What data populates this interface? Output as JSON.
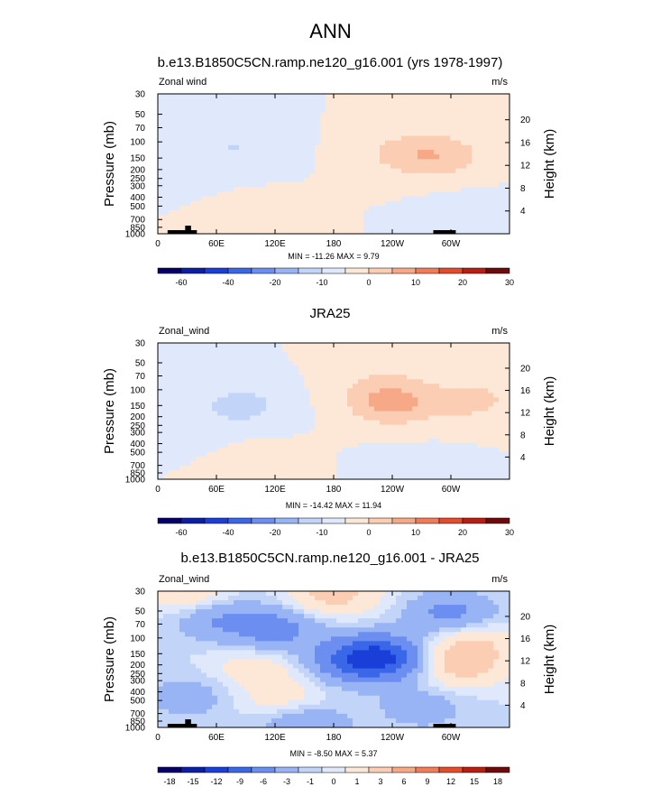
{
  "page_title": "ANN",
  "chart_data": [
    {
      "type": "heatmap",
      "title": "b.e13.B1850C5CN.ramp.ne120_g16.001 (yrs 1978-1997)",
      "left_label": "Zonal wind",
      "units": "m/s",
      "ylabel": "Pressure (mb)",
      "y2label": "Height (km)",
      "x_ticks": [
        "0",
        "60E",
        "120E",
        "180",
        "120W",
        "60W"
      ],
      "y_ticks": [
        "30",
        "50",
        "70",
        "100",
        "150",
        "200",
        "250",
        "300",
        "400",
        "500",
        "700",
        "850",
        "1000"
      ],
      "y2_ticks": [
        "20",
        "16",
        "12",
        "8",
        "4"
      ],
      "min_max": "MIN = -11.26  MAX =  9.79",
      "colorbar_labels": [
        "-60",
        "-40",
        "-20",
        "-10",
        "0",
        "10",
        "20",
        "30"
      ],
      "contour_levels": [
        -60,
        -50,
        -40,
        -30,
        -20,
        -15,
        -10,
        -5,
        0,
        5,
        10,
        15,
        20,
        25,
        30
      ],
      "min": -11.26,
      "max": 9.79,
      "xlim": [
        0,
        360
      ],
      "ylim_mb": [
        1000,
        30
      ],
      "features": [
        {
          "lon": 80,
          "p": 115,
          "value": -5
        },
        {
          "lon": 20,
          "p": 210,
          "value": -2
        },
        {
          "lon": 290,
          "p": 140,
          "value": 8
        },
        {
          "lon": 245,
          "p": 135,
          "value": 5
        },
        {
          "lon": 100,
          "p": 750,
          "value": 4
        },
        {
          "lon": 320,
          "p": 650,
          "value": -3
        }
      ]
    },
    {
      "type": "heatmap",
      "title": "JRA25",
      "left_label": "Zonal_wind",
      "units": "m/s",
      "ylabel": "Pressure (mb)",
      "y2label": "Height (km)",
      "x_ticks": [
        "0",
        "60E",
        "120E",
        "180",
        "120W",
        "60W"
      ],
      "y_ticks": [
        "30",
        "50",
        "70",
        "100",
        "150",
        "200",
        "250",
        "300",
        "400",
        "500",
        "700",
        "850",
        "1000"
      ],
      "y2_ticks": [
        "20",
        "16",
        "12",
        "8",
        "4"
      ],
      "min_max": "MIN = -14.42  MAX = 11.94",
      "colorbar_labels": [
        "-60",
        "-40",
        "-20",
        "-10",
        "0",
        "10",
        "20",
        "30"
      ],
      "contour_levels": [
        -60,
        -50,
        -40,
        -30,
        -20,
        -15,
        -10,
        -5,
        0,
        5,
        10,
        15,
        20,
        25,
        30
      ],
      "min": -14.42,
      "max": 11.94,
      "xlim": [
        0,
        360
      ],
      "ylim_mb": [
        1000,
        30
      ],
      "features": [
        {
          "lon": 85,
          "p": 150,
          "value": -7
        },
        {
          "lon": 20,
          "p": 300,
          "value": -3
        },
        {
          "lon": 238,
          "p": 145,
          "value": 11
        },
        {
          "lon": 320,
          "p": 130,
          "value": 7
        },
        {
          "lon": 230,
          "p": 80,
          "value": 4
        },
        {
          "lon": 100,
          "p": 750,
          "value": 4
        },
        {
          "lon": 260,
          "p": 800,
          "value": -3
        }
      ]
    },
    {
      "type": "heatmap",
      "title": "b.e13.B1850C5CN.ramp.ne120_g16.001 - JRA25",
      "left_label": "Zonal_wind",
      "units": "m/s",
      "ylabel": "Pressure (mb)",
      "y2label": "Height (km)",
      "x_ticks": [
        "0",
        "60E",
        "120E",
        "180",
        "120W",
        "60W"
      ],
      "y_ticks": [
        "30",
        "50",
        "70",
        "100",
        "150",
        "200",
        "250",
        "300",
        "400",
        "500",
        "700",
        "850",
        "1000"
      ],
      "y2_ticks": [
        "20",
        "16",
        "12",
        "8",
        "4"
      ],
      "min_max": "MIN = -8.50  MAX =  5.37",
      "colorbar_labels": [
        "-18",
        "-15",
        "-12",
        "-9",
        "-6",
        "-3",
        "-1",
        "0",
        "1",
        "3",
        "6",
        "9",
        "12",
        "15",
        "18"
      ],
      "contour_levels": [
        -18,
        -15,
        -12,
        -9,
        -6,
        -3,
        -1,
        0,
        1,
        3,
        6,
        9,
        12,
        15,
        18
      ],
      "min": -8.5,
      "max": 5.37,
      "xlim": [
        0,
        360
      ],
      "ylim_mb": [
        1000,
        30
      ],
      "features": [
        {
          "lon": 230,
          "p": 165,
          "value": -8
        },
        {
          "lon": 200,
          "p": 180,
          "value": -5
        },
        {
          "lon": 120,
          "p": 80,
          "value": -4
        },
        {
          "lon": 60,
          "p": 60,
          "value": -3
        },
        {
          "lon": 300,
          "p": 55,
          "value": -4
        },
        {
          "lon": 310,
          "p": 200,
          "value": 4
        },
        {
          "lon": 320,
          "p": 110,
          "value": 3
        },
        {
          "lon": 100,
          "p": 220,
          "value": 2
        },
        {
          "lon": 130,
          "p": 500,
          "value": 2
        },
        {
          "lon": 180,
          "p": 32,
          "value": 4
        },
        {
          "lon": 30,
          "p": 32,
          "value": 3
        },
        {
          "lon": 270,
          "p": 600,
          "value": -2
        },
        {
          "lon": 30,
          "p": 450,
          "value": -2
        },
        {
          "lon": 150,
          "p": 900,
          "value": -3
        }
      ]
    }
  ],
  "colors": {
    "palette": [
      "#08006a",
      "#0a1fa8",
      "#1a3fd8",
      "#3a66e8",
      "#6b8ef0",
      "#98b4f5",
      "#c2d4f8",
      "#dfe9fb",
      "#fde8d8",
      "#fbcdb3",
      "#f7a886",
      "#f27c58",
      "#e44c2c",
      "#b81e12",
      "#6e0a0a"
    ],
    "topography": "#000000"
  }
}
